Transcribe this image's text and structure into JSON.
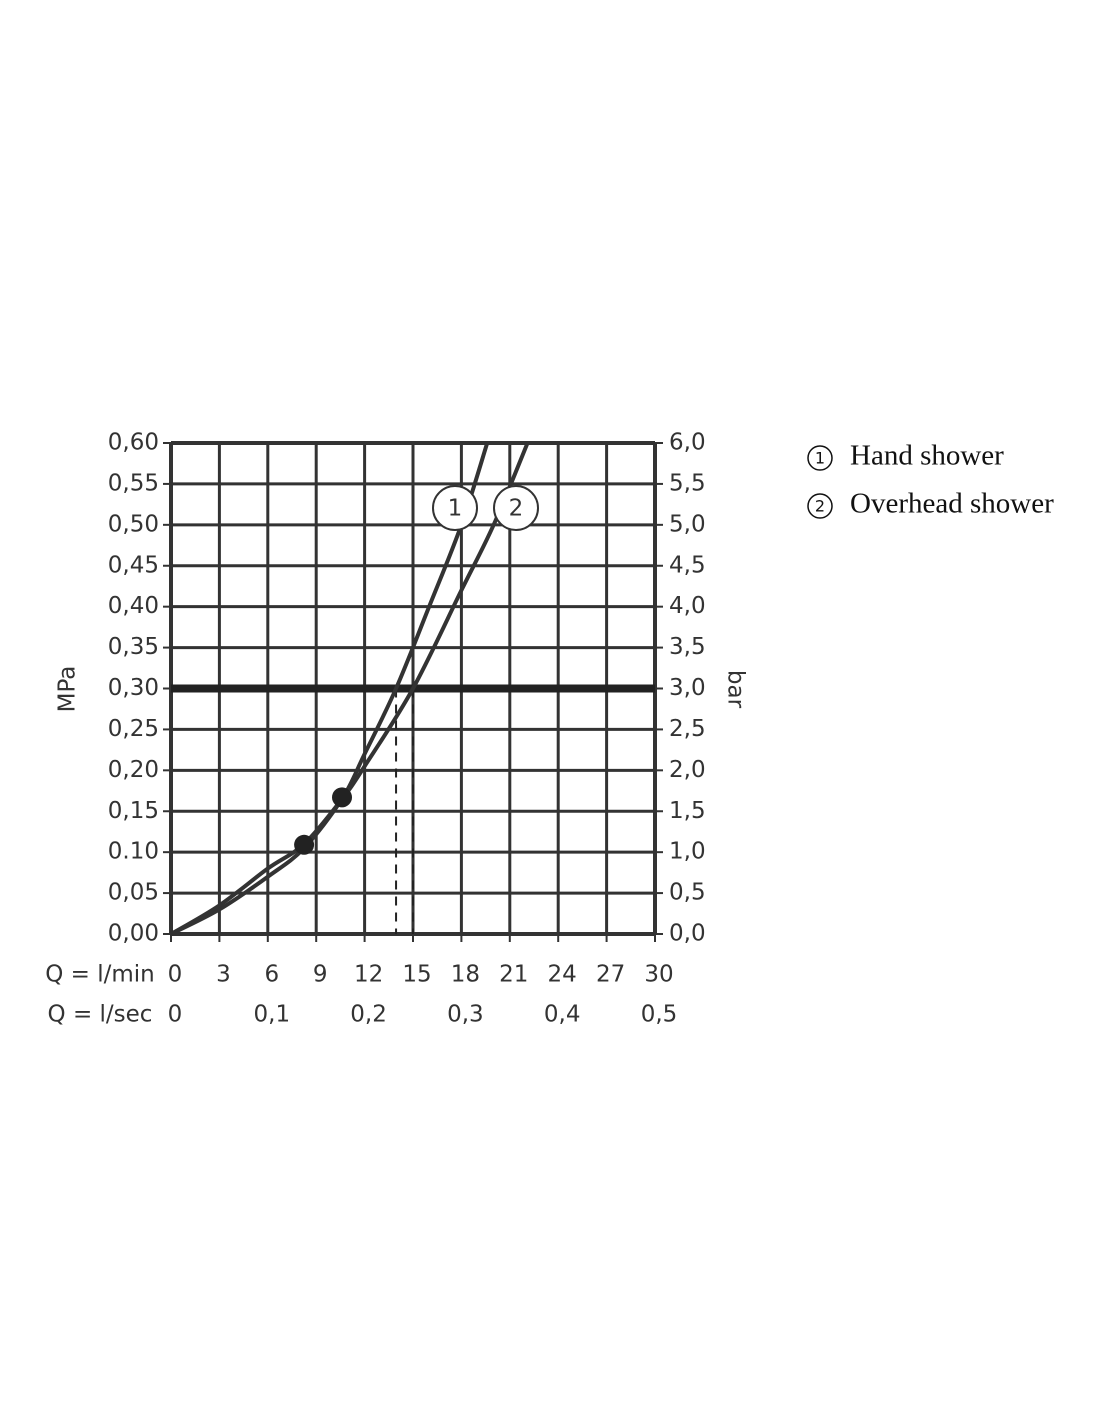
{
  "chart_data": {
    "type": "line",
    "xlabel": "Q = l/min",
    "x2label": "Q = l/sec",
    "ylabel": "MPa",
    "y2label": "bar",
    "xlim": [
      0,
      30
    ],
    "xticks": [
      0,
      3,
      6,
      9,
      12,
      15,
      18,
      21,
      24,
      27,
      30
    ],
    "x2lim": [
      0,
      0.5
    ],
    "x2ticks": [
      0,
      {
        "value": 0.1,
        "label": "0,1"
      },
      {
        "value": 0.2,
        "label": "0,2"
      },
      {
        "value": 0.3,
        "label": "0,3"
      },
      {
        "value": 0.4,
        "label": "0,4"
      },
      {
        "value": 0.5,
        "label": "0,5"
      }
    ],
    "ylim": [
      0,
      0.6
    ],
    "yticks": [
      {
        "value": 0,
        "label": "0,00"
      },
      {
        "value": 0.05,
        "label": "0,05"
      },
      {
        "value": 0.1,
        "label": "0.10"
      },
      {
        "value": 0.15,
        "label": "0,15"
      },
      {
        "value": 0.2,
        "label": "0,20"
      },
      {
        "value": 0.25,
        "label": "0,25"
      },
      {
        "value": 0.3,
        "label": "0,30"
      },
      {
        "value": 0.35,
        "label": "0,35"
      },
      {
        "value": 0.4,
        "label": "0,40"
      },
      {
        "value": 0.45,
        "label": "0,45"
      },
      {
        "value": 0.5,
        "label": "0,50"
      },
      {
        "value": 0.55,
        "label": "0,55"
      },
      {
        "value": 0.6,
        "label": "0,60"
      }
    ],
    "y2lim": [
      0,
      6
    ],
    "y2ticks": [
      {
        "value": 0,
        "label": "0,0"
      },
      {
        "value": 0.5,
        "label": "0,5"
      },
      {
        "value": 1,
        "label": "1,0"
      },
      {
        "value": 1.5,
        "label": "1,5"
      },
      {
        "value": 2,
        "label": "2,0"
      },
      {
        "value": 2.5,
        "label": "2,5"
      },
      {
        "value": 3,
        "label": "3,0"
      },
      {
        "value": 3.5,
        "label": "3,5"
      },
      {
        "value": 4,
        "label": "4,0"
      },
      {
        "value": 4.5,
        "label": "4,5"
      },
      {
        "value": 5,
        "label": "5,0"
      },
      {
        "value": 5.5,
        "label": "5,5"
      },
      {
        "value": 6,
        "label": "6,0"
      }
    ],
    "grid": true,
    "color": "#333333",
    "series": [
      {
        "name": "Hand shower",
        "label": "1",
        "color": "#333333",
        "x": [
          0,
          3,
          6,
          8.25,
          10.6,
          12,
          13.95,
          16,
          18,
          19.6
        ],
        "values": [
          0,
          0.03,
          0.07,
          0.105,
          0.165,
          0.22,
          0.3,
          0.4,
          0.5,
          0.6
        ]
      },
      {
        "name": "Overhead shower",
        "label": "2",
        "color": "#333333",
        "x": [
          0,
          3,
          6,
          8.25,
          10.6,
          12,
          15,
          18,
          20,
          22.1
        ],
        "values": [
          0,
          0.035,
          0.08,
          0.11,
          0.165,
          0.205,
          0.3,
          0.42,
          0.5,
          0.6
        ]
      }
    ],
    "markers": [
      {
        "x": 8.25,
        "y": 0.109
      },
      {
        "x": 10.6,
        "y": 0.167
      }
    ],
    "hline": 0.3,
    "dashed_x": [
      13.95,
      15
    ]
  }
}
